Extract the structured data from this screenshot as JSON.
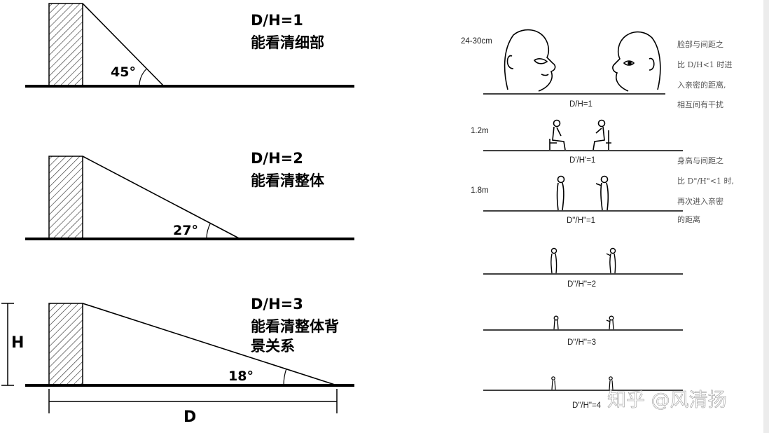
{
  "left_panel": {
    "rows": [
      {
        "ratio": "D/H=1",
        "desc_lines": [
          "能看清细部"
        ],
        "angle": "45°"
      },
      {
        "ratio": "D/H=2",
        "desc_lines": [
          "能看清整体"
        ],
        "angle": "27°"
      },
      {
        "ratio": "D/H=3",
        "desc_lines": [
          "能看清整体背",
          "景关系"
        ],
        "angle": "18°"
      }
    ],
    "dim_height": "H",
    "dim_distance": "D"
  },
  "right_panel": {
    "levels": [
      {
        "height": "24-30cm",
        "caption": "D/H=1"
      },
      {
        "height": "1.2m",
        "caption": "D'/H'=1"
      },
      {
        "height": "1.8m",
        "caption": "D\"/H\"=1"
      },
      {
        "height": "",
        "caption": "D\"/H\"=2"
      },
      {
        "height": "",
        "caption": "D\"/H\"=3"
      },
      {
        "height": "",
        "caption": "D\"/H\"=4"
      }
    ],
    "notes": [
      [
        "脸部与间距之",
        "比 D/H<1 时进",
        "入亲密的距离,",
        "相互间有干扰"
      ],
      [
        "身高与间距之",
        "比 D\"/H\"<1 时,",
        "再次进入亲密",
        "的距离"
      ]
    ]
  },
  "watermark": "知乎 @风清扬"
}
